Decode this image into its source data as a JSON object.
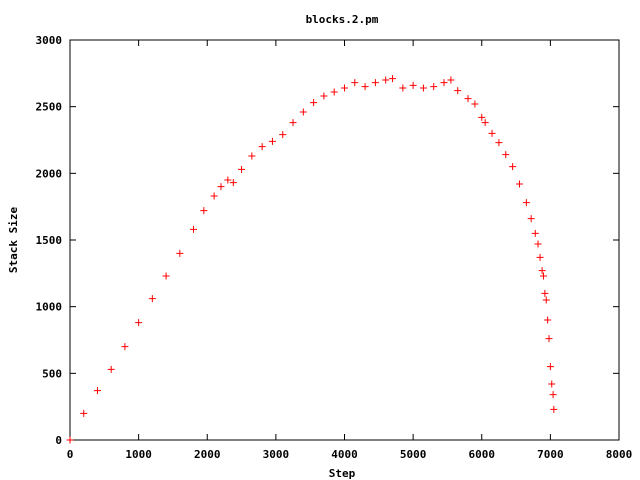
{
  "chart_data": {
    "type": "scatter",
    "title": "blocks.2.pm",
    "xlabel": "Step",
    "ylabel": "Stack Size",
    "xlim": [
      0,
      8000
    ],
    "ylim": [
      0,
      3000
    ],
    "xticks": [
      0,
      1000,
      2000,
      3000,
      4000,
      5000,
      6000,
      7000,
      8000
    ],
    "yticks": [
      0,
      500,
      1000,
      1500,
      2000,
      2500,
      3000
    ],
    "grid": false,
    "legend": "none",
    "marker": "plus",
    "color": "#ff0000",
    "series": [
      {
        "x": [
          0,
          200,
          400,
          600,
          800,
          1000,
          1200,
          1400,
          1600,
          1800,
          1950,
          2100,
          2200,
          2300,
          2380,
          2500,
          2650,
          2800,
          2950,
          3100,
          3250,
          3400,
          3550,
          3700,
          3850,
          4000,
          4150,
          4300,
          4450,
          4600,
          4700,
          4850,
          5000,
          5150,
          5300,
          5450,
          5550,
          5650,
          5800,
          5900,
          6000,
          6050,
          6150,
          6250,
          6350,
          6450,
          6550,
          6650,
          6720,
          6780,
          6820,
          6850,
          6880,
          6900,
          6920,
          6940,
          6960,
          6980,
          7000,
          7020,
          7040,
          7050
        ],
        "y": [
          0,
          200,
          370,
          530,
          700,
          880,
          1060,
          1230,
          1400,
          1580,
          1720,
          1830,
          1900,
          1950,
          1930,
          2030,
          2130,
          2200,
          2240,
          2290,
          2380,
          2460,
          2530,
          2580,
          2610,
          2640,
          2680,
          2650,
          2680,
          2700,
          2710,
          2640,
          2660,
          2640,
          2650,
          2680,
          2700,
          2620,
          2560,
          2520,
          2420,
          2380,
          2300,
          2230,
          2140,
          2050,
          1920,
          1780,
          1660,
          1550,
          1470,
          1370,
          1270,
          1230,
          1100,
          1050,
          900,
          760,
          550,
          420,
          340,
          230
        ]
      }
    ]
  }
}
